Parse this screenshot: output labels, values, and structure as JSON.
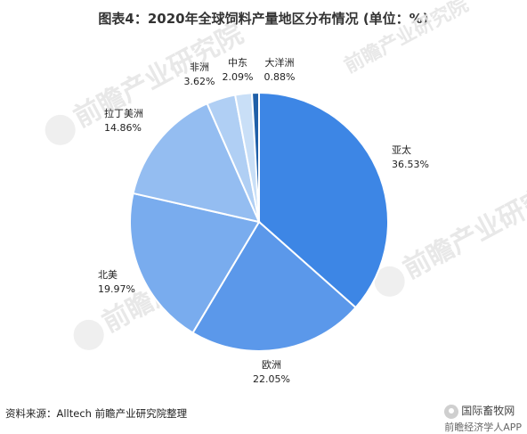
{
  "title": "图表4：2020年全球饲料产量地区分布情况 (单位：%)",
  "watermark": "前瞻产业研究院",
  "source": "资料来源：Alltech 前瞻产业研究院整理",
  "brand": {
    "name": "国际畜牧网",
    "sub": "前瞻经济学人APP"
  },
  "chart_data": {
    "type": "pie",
    "title": "图表4：2020年全球饲料产量地区分布情况 (单位：%)",
    "unit": "%",
    "start": "12 o'clock",
    "direction": "clockwise",
    "slices": [
      {
        "label": "亚太",
        "value": 36.53,
        "value_label": "36.53%",
        "color": "#3d86e5"
      },
      {
        "label": "欧洲",
        "value": 22.05,
        "value_label": "22.05%",
        "color": "#5b98ea"
      },
      {
        "label": "北美",
        "value": 19.97,
        "value_label": "19.97%",
        "color": "#79acee"
      },
      {
        "label": "拉丁美洲",
        "value": 14.86,
        "value_label": "14.86%",
        "color": "#94bdf1"
      },
      {
        "label": "非洲",
        "value": 3.62,
        "value_label": "3.62%",
        "color": "#b0cff4"
      },
      {
        "label": "中东",
        "value": 2.09,
        "value_label": "2.09%",
        "color": "#c9dff7"
      },
      {
        "label": "大洋洲",
        "value": 0.88,
        "value_label": "0.88%",
        "color": "#1f5fa8"
      }
    ]
  }
}
